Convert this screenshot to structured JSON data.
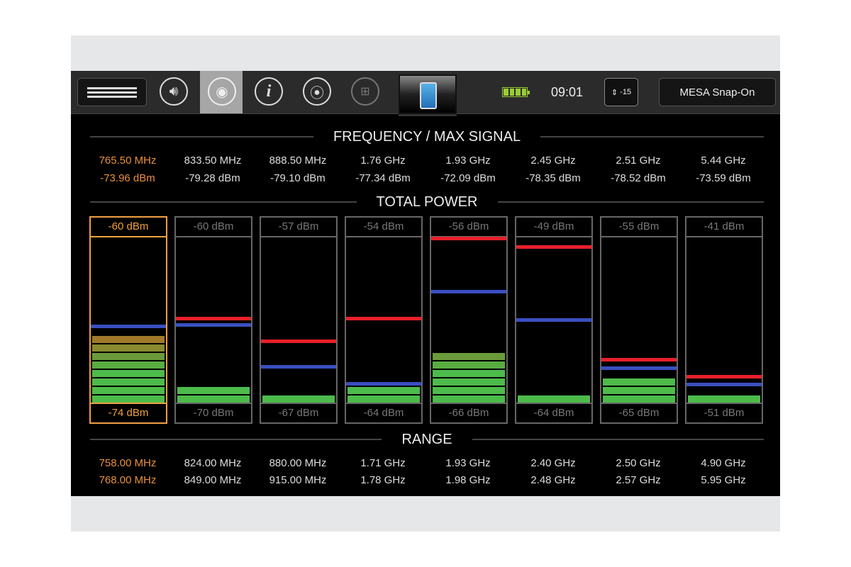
{
  "toolbar": {
    "icons": [
      "menu-icon",
      "speaker-icon",
      "camera-icon",
      "info-icon",
      "location-pin-icon",
      "network-icon",
      "phone-signal-icon",
      "battery-icon",
      "antenna-icon"
    ],
    "info_glyph": "i",
    "time": "09:01",
    "antenna_badge": "-15",
    "device_name": "MESA Snap-On",
    "battery_level": 1.0
  },
  "sections": {
    "frequency": "FREQUENCY / MAX SIGNAL",
    "power": "TOTAL POWER",
    "range": "RANGE"
  },
  "colors": {
    "selected": "#e8913a",
    "max_marker": "#e8202a",
    "avg_marker": "#3a4fc0",
    "bar": "#4cbb4a"
  },
  "channels": [
    {
      "freq": "765.50 MHz",
      "signal": "-73.96 dBm",
      "max": "-60 dBm",
      "min": "-74 dBm",
      "range_lo": "758.00 MHz",
      "range_hi": "768.00 MHz",
      "selected": true,
      "segments": 8,
      "red": null,
      "blue": 0.46
    },
    {
      "freq": "833.50 MHz",
      "signal": "-79.28 dBm",
      "max": "-60 dBm",
      "min": "-70 dBm",
      "range_lo": "824.00 MHz",
      "range_hi": "849.00 MHz",
      "selected": false,
      "segments": 2,
      "red": 0.51,
      "blue": 0.47
    },
    {
      "freq": "888.50 MHz",
      "signal": "-79.10 dBm",
      "max": "-57 dBm",
      "min": "-67 dBm",
      "range_lo": "880.00 MHz",
      "range_hi": "915.00 MHz",
      "selected": false,
      "segments": 1,
      "red": 0.37,
      "blue": 0.22
    },
    {
      "freq": "1.76 GHz",
      "signal": "-77.34 dBm",
      "max": "-54 dBm",
      "min": "-64 dBm",
      "range_lo": "1.71 GHz",
      "range_hi": "1.78 GHz",
      "selected": false,
      "segments": 2,
      "red": 0.51,
      "blue": 0.115
    },
    {
      "freq": "1.93 GHz",
      "signal": "-72.09 dBm",
      "max": "-56 dBm",
      "min": "-66 dBm",
      "range_lo": "1.93 GHz",
      "range_hi": "1.98 GHz",
      "selected": false,
      "segments": 6,
      "red": 0.99,
      "blue": 0.67
    },
    {
      "freq": "2.45 GHz",
      "signal": "-78.35 dBm",
      "max": "-49 dBm",
      "min": "-64 dBm",
      "range_lo": "2.40 GHz",
      "range_hi": "2.48 GHz",
      "selected": false,
      "segments": 1,
      "red": 0.94,
      "blue": 0.5
    },
    {
      "freq": "2.51 GHz",
      "signal": "-78.52 dBm",
      "max": "-55 dBm",
      "min": "-65 dBm",
      "range_lo": "2.50 GHz",
      "range_hi": "2.57 GHz",
      "selected": false,
      "segments": 3,
      "red": 0.26,
      "blue": 0.21
    },
    {
      "freq": "5.44 GHz",
      "signal": "-73.59 dBm",
      "max": "-41 dBm",
      "min": "-51 dBm",
      "range_lo": "4.90 GHz",
      "range_hi": "5.95 GHz",
      "selected": false,
      "segments": 1,
      "red": 0.16,
      "blue": 0.11
    }
  ]
}
